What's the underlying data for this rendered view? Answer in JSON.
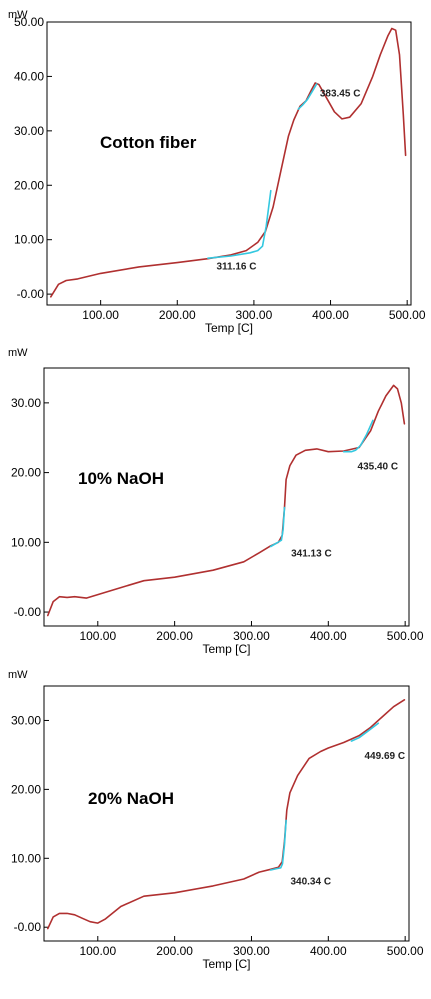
{
  "chart_data": [
    {
      "type": "line",
      "ylabel": "mW",
      "xlabel": "Temp [C]",
      "xlim": [
        30,
        505
      ],
      "ylim": [
        -2,
        50
      ],
      "x_ticks": [
        "100.00",
        "200.00",
        "300.00",
        "400.00",
        "500.00"
      ],
      "x_tick_values": [
        100,
        200,
        300,
        400,
        500
      ],
      "y_ticks": [
        "-0.00",
        "10.00",
        "20.00",
        "30.00",
        "40.00",
        "50.00"
      ],
      "y_tick_values": [
        0,
        10,
        20,
        30,
        40,
        50
      ],
      "sample_label": "Cotton fiber",
      "annotations": [
        {
          "text": "383.45 C",
          "x": 383.45,
          "y": 34.5
        },
        {
          "text": "311.16 C",
          "x": 311.16,
          "y": 7.5
        }
      ],
      "series": [
        {
          "x": [
            35,
            45,
            55,
            70,
            100,
            150,
            200,
            240,
            270,
            290,
            305,
            315,
            325,
            335,
            345,
            352,
            360,
            368,
            375,
            380,
            385,
            395,
            405,
            415,
            425,
            440,
            455,
            465,
            475,
            480,
            485,
            490,
            495,
            498
          ],
          "y": [
            -0.5,
            1.8,
            2.5,
            2.8,
            3.8,
            5.0,
            5.8,
            6.5,
            7.2,
            8.0,
            9.5,
            11.5,
            16.0,
            22.5,
            29.0,
            32.0,
            34.5,
            35.5,
            37.5,
            38.8,
            38.5,
            36.0,
            33.5,
            32.2,
            32.5,
            35.0,
            40.0,
            44.0,
            47.5,
            48.8,
            48.5,
            44.0,
            33.0,
            25.5
          ]
        },
        {
          "x": [
            240,
            270,
            295,
            305,
            311.16,
            316,
            322
          ],
          "y": [
            6.6,
            7.0,
            7.6,
            8.0,
            8.8,
            12.5,
            19.0
          ]
        },
        {
          "x": [
            358,
            364,
            370,
            376,
            382
          ],
          "y": [
            34.0,
            34.8,
            35.8,
            37.2,
            38.6
          ]
        }
      ]
    },
    {
      "type": "line",
      "ylabel": "mW",
      "xlabel": "Temp [C]",
      "xlim": [
        30,
        505
      ],
      "ylim": [
        -2,
        35
      ],
      "x_ticks": [
        "100.00",
        "200.00",
        "300.00",
        "400.00",
        "500.00"
      ],
      "x_tick_values": [
        100,
        200,
        300,
        400,
        500
      ],
      "y_ticks": [
        "-0.00",
        "10.00",
        "20.00",
        "30.00"
      ],
      "y_tick_values": [
        0,
        10,
        20,
        30
      ],
      "sample_label": "10% NaOH",
      "annotations": [
        {
          "text": "435.40 C",
          "x": 435.4,
          "y": 23.0
        },
        {
          "text": "341.13 C",
          "x": 341.13,
          "y": 10.0
        }
      ],
      "series": [
        {
          "x": [
            35,
            42,
            50,
            60,
            70,
            85,
            100,
            130,
            160,
            200,
            250,
            290,
            310,
            325,
            335,
            340,
            343,
            345,
            350,
            358,
            370,
            385,
            400,
            420,
            440,
            455,
            465,
            475,
            485,
            490,
            495,
            499
          ],
          "y": [
            -0.5,
            1.5,
            2.2,
            2.1,
            2.2,
            2.0,
            2.5,
            3.5,
            4.5,
            5.0,
            6.0,
            7.2,
            8.5,
            9.5,
            10.0,
            11.0,
            15.0,
            19.0,
            21.0,
            22.5,
            23.2,
            23.4,
            23.0,
            23.1,
            23.6,
            26.0,
            28.8,
            31.0,
            32.5,
            32.0,
            30.0,
            27.0
          ]
        },
        {
          "x": [
            420,
            430,
            435.4,
            442,
            450,
            458
          ],
          "y": [
            23.0,
            23.0,
            23.2,
            23.9,
            25.5,
            27.5
          ]
        },
        {
          "x": [
            325,
            333,
            339,
            341.13,
            343
          ],
          "y": [
            9.4,
            9.9,
            10.3,
            11.8,
            15.0
          ]
        }
      ]
    },
    {
      "type": "line",
      "ylabel": "mW",
      "xlabel": "Temp [C]",
      "xlim": [
        30,
        505
      ],
      "ylim": [
        -2,
        35
      ],
      "x_ticks": [
        "100.00",
        "200.00",
        "300.00",
        "400.00",
        "500.00"
      ],
      "x_tick_values": [
        100,
        200,
        300,
        400,
        500
      ],
      "y_ticks": [
        "-0.00",
        "10.00",
        "20.00",
        "30.00"
      ],
      "y_tick_values": [
        0,
        10,
        20,
        30
      ],
      "sample_label": "20% NaOH",
      "annotations": [
        {
          "text": "449.69 C",
          "x": 449.69,
          "y": 27.0
        },
        {
          "text": "340.34 C",
          "x": 340.34,
          "y": 8.5
        }
      ],
      "series": [
        {
          "x": [
            35,
            42,
            50,
            60,
            70,
            80,
            90,
            100,
            110,
            130,
            160,
            200,
            250,
            290,
            310,
            325,
            335,
            340,
            343,
            346,
            350,
            360,
            375,
            390,
            400,
            420,
            440,
            455,
            470,
            485,
            499
          ],
          "y": [
            -0.2,
            1.5,
            2.0,
            2.0,
            1.8,
            1.3,
            0.8,
            0.6,
            1.2,
            3.0,
            4.5,
            5.0,
            6.0,
            7.0,
            8.0,
            8.4,
            8.7,
            9.5,
            12.5,
            17.0,
            19.5,
            22.0,
            24.5,
            25.5,
            26.0,
            26.8,
            27.8,
            29.0,
            30.5,
            32.0,
            33.0
          ]
        },
        {
          "x": [
            430,
            440,
            449.69,
            458,
            465
          ],
          "y": [
            27.0,
            27.5,
            28.3,
            29.0,
            29.6
          ]
        },
        {
          "x": [
            325,
            333,
            338,
            340.34,
            343,
            345
          ],
          "y": [
            8.3,
            8.5,
            8.6,
            9.2,
            12.0,
            15.5
          ]
        }
      ]
    }
  ],
  "colors": {
    "curve": "#b03030",
    "tangent": "#33c8e0",
    "axis": "#000000"
  }
}
